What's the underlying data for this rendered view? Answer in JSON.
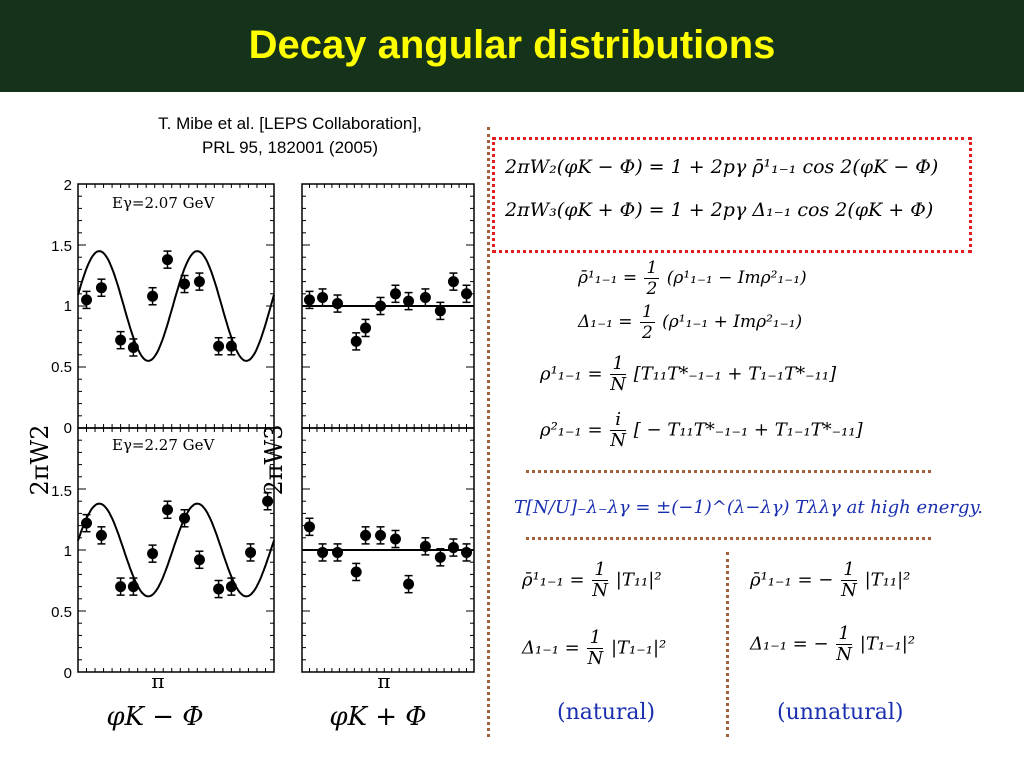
{
  "title": "Decay angular distributions",
  "reference": [
    "T. Mibe et al. [LEPS Collaboration],",
    "PRL 95, 182001 (2005)"
  ],
  "chart_data": [
    {
      "type": "scatter",
      "panel": "top-left",
      "annotation": "Eγ=2.07 GeV",
      "ylabel": "2πW2",
      "xlabel": "φK − Φ",
      "xtick_label": "π",
      "yticks": [
        "2",
        "1.5",
        "1",
        "0.5",
        "0"
      ],
      "ylim": [
        0,
        2
      ],
      "x": [
        0.2,
        0.55,
        1.0,
        1.3,
        1.75,
        2.1,
        2.5,
        2.85,
        3.3,
        3.6
      ],
      "y": [
        1.05,
        1.15,
        0.72,
        0.66,
        1.08,
        1.38,
        1.18,
        1.2,
        0.67,
        0.67
      ],
      "fit": "cos2"
    },
    {
      "type": "scatter",
      "panel": "top-right",
      "ylabel": "2πW3",
      "xlabel": "φK + Φ",
      "xtick_label": "π",
      "ylim": [
        0,
        2
      ],
      "x": [
        0.2,
        0.55,
        0.95,
        1.45,
        1.7,
        2.1,
        2.5,
        2.85,
        3.3,
        3.7,
        4.05,
        4.4
      ],
      "y": [
        1.05,
        1.07,
        1.02,
        0.71,
        0.82,
        1.0,
        1.1,
        1.04,
        1.07,
        0.96,
        1.2,
        1.1
      ],
      "fit": "flat"
    },
    {
      "type": "scatter",
      "panel": "bottom-left",
      "annotation": "Eγ=2.27 GeV",
      "yticks": [
        "1.5",
        "1",
        "0.5",
        "0"
      ],
      "ylim": [
        0,
        2
      ],
      "x": [
        0.2,
        0.55,
        1.0,
        1.3,
        1.75,
        2.1,
        2.5,
        2.85,
        3.3,
        3.6,
        4.05,
        4.45
      ],
      "y": [
        1.22,
        1.12,
        0.7,
        0.7,
        0.97,
        1.33,
        1.26,
        0.92,
        0.68,
        0.7,
        0.98,
        1.4
      ],
      "fit": "cos2"
    },
    {
      "type": "scatter",
      "panel": "bottom-right",
      "ylim": [
        0,
        2
      ],
      "x": [
        0.2,
        0.55,
        0.95,
        1.45,
        1.7,
        2.1,
        2.5,
        2.85,
        3.3,
        3.7,
        4.05,
        4.4
      ],
      "y": [
        1.19,
        0.98,
        0.98,
        0.82,
        1.12,
        1.12,
        1.09,
        0.72,
        1.03,
        0.94,
        1.02,
        0.98
      ],
      "fit": "flat"
    }
  ],
  "equations": {
    "w2": "2πW₂(φK − Φ) = 1 + 2pγ ρ̄¹₁₋₁ cos 2(φK − Φ)",
    "w3": "2πW₃(φK + Φ) = 1 + 2pγ Δ₁₋₁ cos 2(φK + Φ)",
    "rhobar_lhs": "ρ̄¹₁₋₁ =",
    "rhobar_rhs": "(ρ¹₁₋₁ − Imρ²₁₋₁)",
    "delta_lhs": "Δ₁₋₁ =",
    "delta_rhs": "(ρ¹₁₋₁ + Imρ²₁₋₁)",
    "rho1_lhs": "ρ¹₁₋₁ =",
    "rho1_rhs": "[T₁₁T*₋₁₋₁ + T₁₋₁T*₋₁₁]",
    "rho2_lhs": "ρ²₁₋₁ =",
    "rho2_rhs": "[ − T₁₁T*₋₁₋₁ + T₁₋₁T*₋₁₁]",
    "parity": "T[N/U]₋λ₋λγ = ±(−1)^(λ−λγ) Tλλγ at high energy.",
    "nat_rhobar": "ρ̄¹₁₋₁ =",
    "nat_rhobar_rhs": "|T₁₁|²",
    "nat_delta": "Δ₁₋₁ =",
    "nat_delta_rhs": "|T₁₋₁|²",
    "un_rhobar": "ρ̄¹₁₋₁ = −",
    "un_rhobar_rhs": "|T₁₁|²",
    "un_delta": "Δ₁₋₁ = −",
    "un_delta_rhs": "|T₁₋₁|²",
    "half_num": "1",
    "half_den": "2",
    "n_num": "1",
    "i_num": "i",
    "n_den": "N"
  },
  "captions": {
    "natural": "(natural)",
    "unnatural": "(unnatural)"
  },
  "colors": {
    "title_bg": "#15331a",
    "title_text": "#ffff00",
    "eq_box": "#e02020",
    "divider": "#a0603a",
    "accent": "#1a2fb0"
  }
}
